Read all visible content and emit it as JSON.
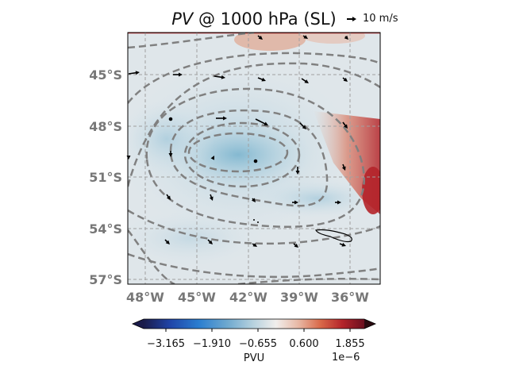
{
  "title": {
    "var": "PV",
    "rest": " @ 1000 hPa (SL)"
  },
  "reference_vector": {
    "label": "10 m/s"
  },
  "map": {
    "lat_ticks": [
      "45°S",
      "48°S",
      "51°S",
      "54°S",
      "57°S"
    ],
    "lon_ticks": [
      "48°W",
      "45°W",
      "42°W",
      "39°W",
      "36°W"
    ]
  },
  "colorbar": {
    "ticks": [
      "−3.165",
      "−1.910",
      "−0.655",
      "0.600",
      "1.855"
    ],
    "label": "PVU",
    "exponent": "1e−6",
    "colormap": [
      "#1a1b4a",
      "#2045a8",
      "#2b7ed0",
      "#6fa9cf",
      "#b9d3df",
      "#f1eeec",
      "#e8b9a6",
      "#d96a4a",
      "#b4242a",
      "#6a0f1f",
      "#2a0a10"
    ]
  }
}
